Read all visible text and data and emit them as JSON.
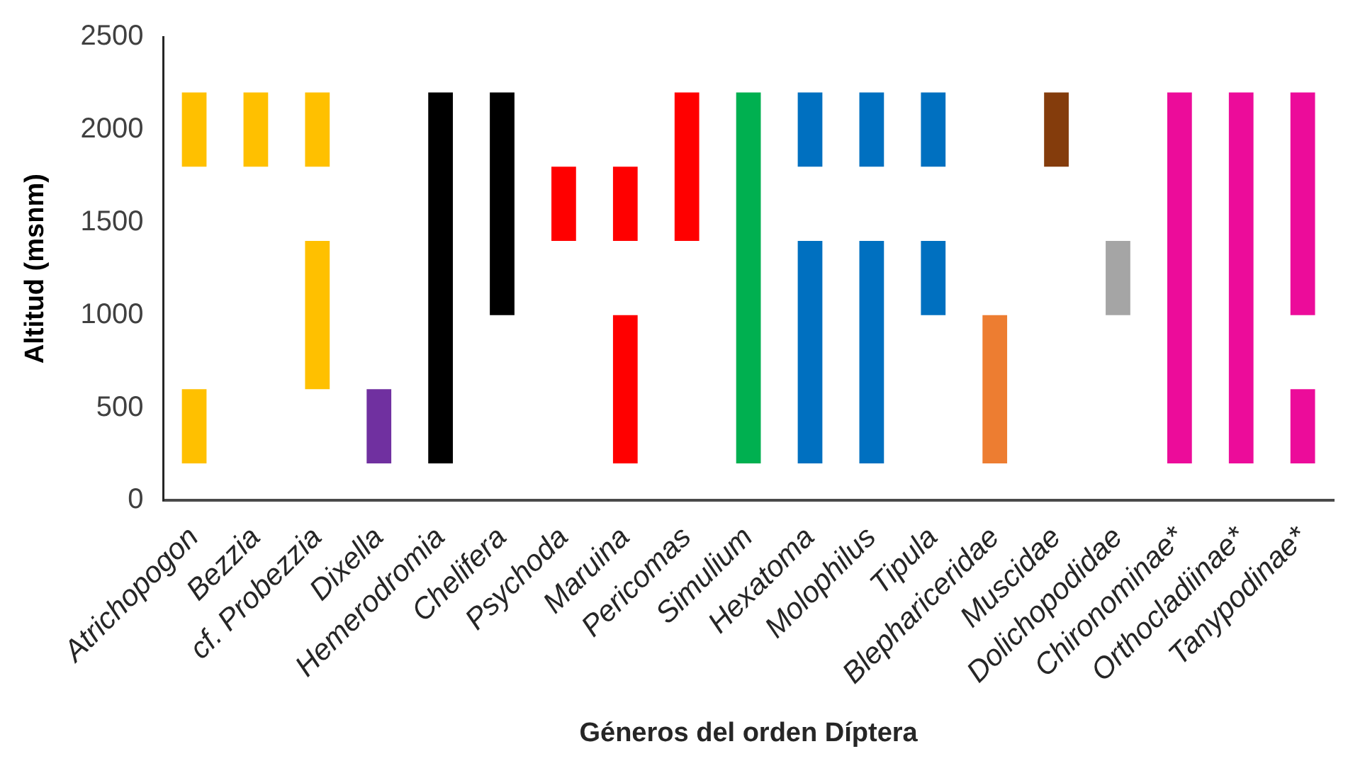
{
  "chart_data": {
    "type": "bar",
    "xlabel": "Géneros del orden Díptera",
    "ylabel": "Altitud (msnm)",
    "categories": [
      "Atrichopogon",
      "Bezzia",
      "cf. Probezzia",
      "Dixella",
      "Hemerodromia",
      "Chelifera",
      "Psychoda",
      "Maruina",
      "Pericomas",
      "Simulium",
      "Hexatoma",
      "Molophilus",
      "Tipula",
      "Blephariceridae",
      "Muscidae",
      "Dolichopodidae",
      "Chironominae*",
      "Orthocladiinae*",
      "Tanypodinae*"
    ],
    "series": [
      {
        "base": [
          200,
          null,
          600,
          200,
          200,
          1000,
          1400,
          200,
          1400,
          200,
          200,
          200,
          1000,
          200,
          null,
          1000,
          200,
          200,
          200
        ],
        "values": [
          400,
          null,
          800,
          400,
          2000,
          1200,
          400,
          800,
          800,
          2000,
          1200,
          1200,
          400,
          800,
          null,
          400,
          2000,
          2000,
          400
        ],
        "colors": [
          "#ffc000",
          "#ffc000",
          "#ffc000",
          "#7030a0",
          "#000000",
          "#000000",
          "#ff0000",
          "#ff0000",
          "#ff0000",
          "#00b050",
          "#0070c0",
          "#0070c0",
          "#0070c0",
          "#ed7d31",
          "#843c0c",
          "#a5a5a5",
          "#ec0c9a",
          "#ec0c9a",
          "#ec0c9a"
        ]
      },
      {
        "base": [
          1800,
          1800,
          1800,
          null,
          null,
          null,
          null,
          1400,
          null,
          null,
          1800,
          1800,
          1800,
          null,
          1800,
          null,
          null,
          null,
          1000
        ],
        "values": [
          400,
          400,
          400,
          null,
          null,
          null,
          null,
          400,
          null,
          null,
          400,
          400,
          400,
          null,
          400,
          null,
          null,
          null,
          1200
        ],
        "colors": [
          "#ffc000",
          "#ffc000",
          "#ffc000",
          "#7030a0",
          "#000000",
          "#000000",
          "#ff0000",
          "#ff0000",
          "#ff0000",
          "#00b050",
          "#0070c0",
          "#0070c0",
          "#0070c0",
          "#ed7d31",
          "#843c0c",
          "#a5a5a5",
          "#ec0c9a",
          "#ec0c9a",
          "#ec0c9a"
        ]
      }
    ],
    "ylim": [
      0,
      2500
    ],
    "yticks": [
      0,
      500,
      1000,
      1500,
      2000,
      2500
    ],
    "grid": false,
    "legend": false
  }
}
